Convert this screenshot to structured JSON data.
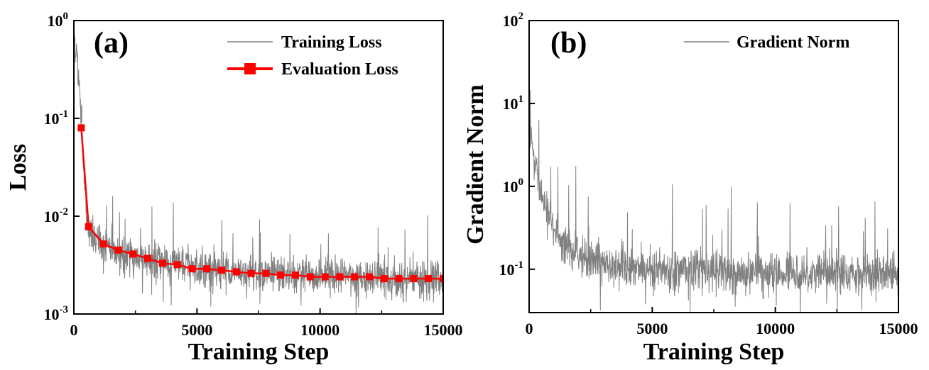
{
  "chart_data": [
    {
      "type": "line",
      "panel_label": "(a)",
      "xlabel": "Training Step",
      "ylabel": "Loss",
      "yscale": "log",
      "xlim": [
        0,
        15000
      ],
      "ylim": [
        0.001,
        1
      ],
      "x_ticks": [
        0,
        5000,
        10000,
        15000
      ],
      "x_tick_labels": [
        "0",
        "5000",
        "10000",
        "15000"
      ],
      "y_ticks": [
        0.001,
        0.01,
        0.1,
        1
      ],
      "y_tick_labels": [
        {
          "base": "10",
          "exp": "-3"
        },
        {
          "base": "10",
          "exp": "-2"
        },
        {
          "base": "10",
          "exp": "-1"
        },
        {
          "base": "10",
          "exp": "0"
        }
      ],
      "legend_position": "top-right",
      "series": [
        {
          "name": "Training Loss",
          "color": "#808080",
          "style": "noisy-line",
          "x": [
            0,
            100,
            200,
            300,
            400,
            500,
            600,
            800,
            1000,
            1500,
            2000,
            3000,
            4000,
            5000,
            6000,
            7000,
            8000,
            9000,
            10000,
            11000,
            12000,
            13000,
            14000,
            15000
          ],
          "values": [
            0.7,
            0.5,
            0.25,
            0.1,
            0.03,
            0.012,
            0.007,
            0.0058,
            0.0052,
            0.0045,
            0.0041,
            0.0036,
            0.0032,
            0.003,
            0.0028,
            0.0027,
            0.0026,
            0.0025,
            0.0024,
            0.0024,
            0.0023,
            0.0023,
            0.0023,
            0.0022
          ]
        },
        {
          "name": "Evaluation Loss",
          "color": "#ff0000",
          "style": "line-square-markers",
          "x": [
            300,
            600,
            1200,
            1800,
            2400,
            3000,
            3600,
            4200,
            4800,
            5400,
            6000,
            6600,
            7200,
            7800,
            8400,
            9000,
            9600,
            10200,
            10800,
            11400,
            12000,
            12600,
            13200,
            13800,
            14400,
            15000
          ],
          "values": [
            0.08,
            0.0078,
            0.0052,
            0.0045,
            0.0041,
            0.0037,
            0.0033,
            0.0032,
            0.0029,
            0.0029,
            0.0028,
            0.0027,
            0.0026,
            0.0026,
            0.0025,
            0.0025,
            0.0024,
            0.0024,
            0.0024,
            0.0024,
            0.0024,
            0.0023,
            0.0023,
            0.0023,
            0.0023,
            0.0023
          ]
        }
      ]
    },
    {
      "type": "line",
      "panel_label": "(b)",
      "xlabel": "Training Step",
      "ylabel": "Gradient Norm",
      "yscale": "log",
      "xlim": [
        0,
        15000
      ],
      "ylim": [
        0.03,
        100
      ],
      "x_ticks": [
        0,
        5000,
        10000,
        15000
      ],
      "x_tick_labels": [
        "0",
        "5000",
        "10000",
        "15000"
      ],
      "y_ticks": [
        0.1,
        1,
        10,
        100
      ],
      "y_tick_labels": [
        {
          "base": "10",
          "exp": "-1"
        },
        {
          "base": "10",
          "exp": "0"
        },
        {
          "base": "10",
          "exp": "1"
        },
        {
          "base": "10",
          "exp": "2"
        }
      ],
      "legend_position": "top-right",
      "series": [
        {
          "name": "Gradient Norm",
          "color": "#808080",
          "style": "noisy-line",
          "x": [
            0,
            100,
            200,
            300,
            500,
            800,
            1000,
            1500,
            2000,
            3000,
            4000,
            5000,
            6000,
            7000,
            8000,
            9000,
            10000,
            11000,
            12000,
            13000,
            14000,
            15000
          ],
          "values": [
            4,
            3,
            2,
            1.5,
            0.8,
            0.4,
            0.3,
            0.2,
            0.15,
            0.12,
            0.11,
            0.1,
            0.1,
            0.1,
            0.09,
            0.09,
            0.09,
            0.09,
            0.09,
            0.09,
            0.09,
            0.09
          ]
        }
      ]
    }
  ]
}
